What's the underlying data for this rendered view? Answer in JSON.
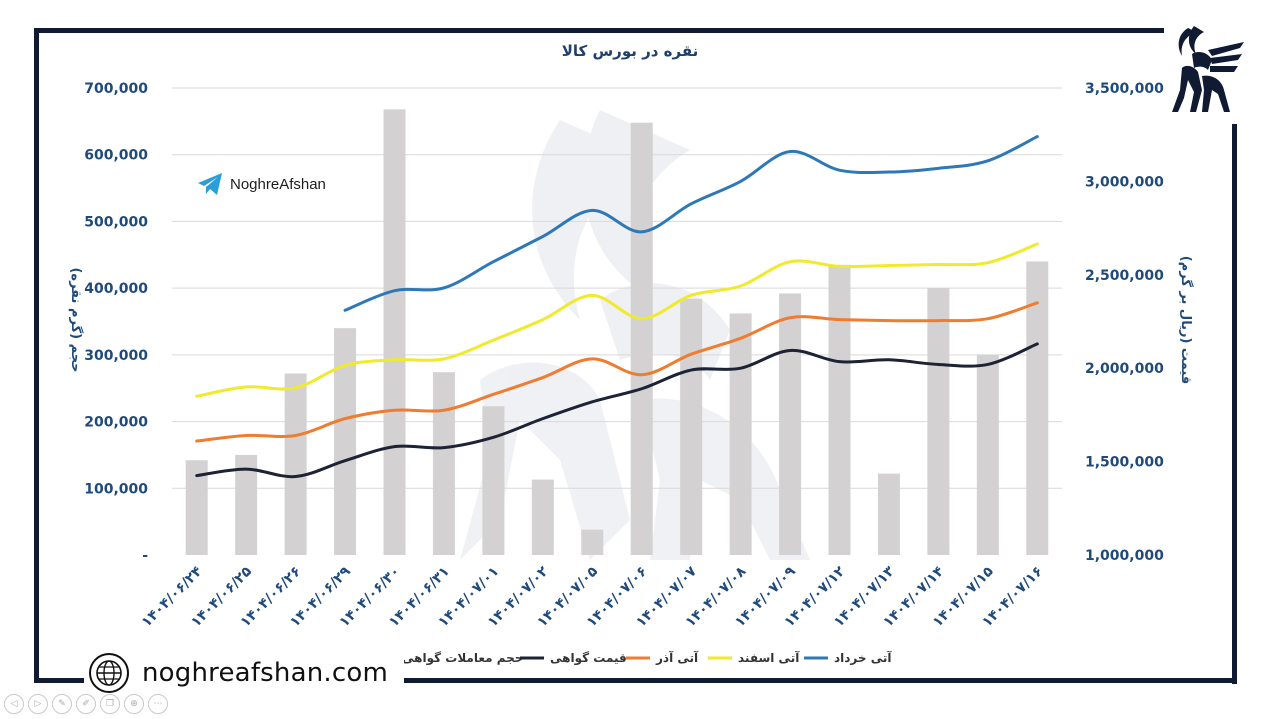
{
  "brand": {
    "website": "noghreafshan.com",
    "telegram_name": "NoghreAfshan",
    "accent_color": "#111a33"
  },
  "chart_data": {
    "type": "bar+line",
    "title": "نقره در بورس کالا",
    "ylabel_left": "حجم (گرم نقره)",
    "ylabel_right": "قیمت (ریال بر گرم)",
    "ylim_left": [
      0,
      700000
    ],
    "ylim_right": [
      1000000,
      3500000
    ],
    "left_ticks": [
      "-",
      "100,000",
      "200,000",
      "300,000",
      "400,000",
      "500,000",
      "600,000",
      "700,000"
    ],
    "right_ticks": [
      "1,000,000",
      "1,500,000",
      "2,000,000",
      "2,500,000",
      "3,000,000",
      "3,500,000"
    ],
    "categories": [
      "۱۴۰۴/۰۶/۲۴",
      "۱۴۰۴/۰۶/۲۵",
      "۱۴۰۴/۰۶/۲۶",
      "۱۴۰۴/۰۶/۲۹",
      "۱۴۰۴/۰۶/۳۰",
      "۱۴۰۴/۰۶/۳۱",
      "۱۴۰۴/۰۷/۰۱",
      "۱۴۰۴/۰۷/۰۲",
      "۱۴۰۴/۰۷/۰۵",
      "۱۴۰۴/۰۷/۰۶",
      "۱۴۰۴/۰۷/۰۷",
      "۱۴۰۴/۰۷/۰۸",
      "۱۴۰۴/۰۷/۰۹",
      "۱۴۰۴/۰۷/۱۲",
      "۱۴۰۴/۰۷/۱۳",
      "۱۴۰۴/۰۷/۱۴",
      "۱۴۰۴/۰۷/۱۵",
      "۱۴۰۴/۰۷/۱۶"
    ],
    "bar_series": {
      "name": "حجم معاملات گواهی",
      "color": "#d3d1d1",
      "axis": "left",
      "values": [
        142000,
        150000,
        272000,
        340000,
        668000,
        274000,
        223000,
        113000,
        38000,
        648000,
        384000,
        362000,
        392000,
        435000,
        122000,
        400000,
        300000,
        440000
      ]
    },
    "line_series": [
      {
        "name": "قیمت گواهی",
        "color": "#1c2334",
        "axis": "right",
        "values": [
          1425000,
          1460000,
          1420000,
          1505000,
          1580000,
          1575000,
          1630000,
          1730000,
          1820000,
          1890000,
          1990000,
          2000000,
          2095000,
          2035000,
          2045000,
          2020000,
          2020000,
          2130000
        ]
      },
      {
        "name": "آتی آذر",
        "color": "#ef7c2f",
        "axis": "right",
        "values": [
          1610000,
          1640000,
          1640000,
          1730000,
          1775000,
          1775000,
          1860000,
          1950000,
          2050000,
          1965000,
          2075000,
          2160000,
          2270000,
          2260000,
          2255000,
          2255000,
          2265000,
          2350000
        ]
      },
      {
        "name": "آتی اسفند",
        "color": "#f0ea2c",
        "axis": "right",
        "values": [
          1850000,
          1900000,
          1895000,
          2015000,
          2045000,
          2050000,
          2150000,
          2260000,
          2390000,
          2265000,
          2390000,
          2440000,
          2570000,
          2545000,
          2550000,
          2555000,
          2565000,
          2665000
        ]
      },
      {
        "name": "آتی خرداد",
        "color": "#2e78b8",
        "axis": "right",
        "start_index": 3,
        "values": [
          null,
          null,
          null,
          2310000,
          2415000,
          2430000,
          2570000,
          2705000,
          2845000,
          2730000,
          2880000,
          3000000,
          3160000,
          3060000,
          3050000,
          3070000,
          3110000,
          3240000
        ]
      }
    ],
    "legend_position": "bottom"
  }
}
